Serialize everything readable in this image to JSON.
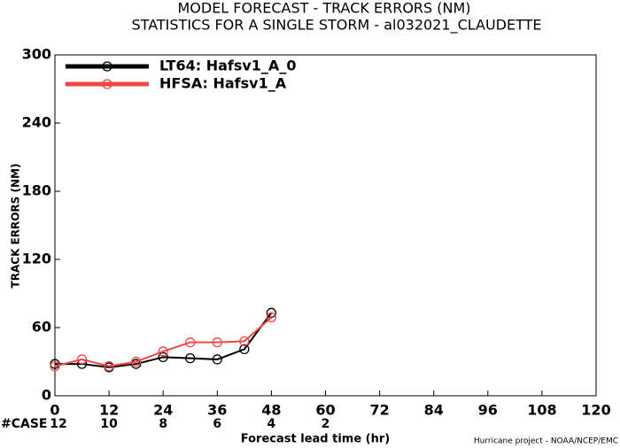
{
  "chart_data": {
    "type": "line",
    "title": "MODEL FORECAST - TRACK ERRORS (NM)",
    "subtitle": "STATISTICS FOR A SINGLE STORM - al032021_CLAUDETTE",
    "x_label": "Forecast lead time (hr)",
    "y_label": "TRACK ERRORS (NM)",
    "footer": "Hurricane project - NOAA/NCEP/EMC",
    "x": [
      0,
      6,
      12,
      18,
      24,
      30,
      36,
      42,
      48
    ],
    "series": [
      {
        "name": "LT64: Hafsv1_A_0",
        "color": "#000000",
        "values": [
          28,
          28,
          25,
          28,
          34,
          33,
          32,
          41,
          73
        ]
      },
      {
        "name": "HFSA: Hafsv1_A",
        "color": "#f04646",
        "values": [
          26,
          32,
          26,
          30,
          39,
          47,
          47,
          48,
          69
        ]
      }
    ],
    "case_counts": {
      "label": "#CASE",
      "color": "#00c0c8",
      "x": [
        0,
        12,
        24,
        36,
        48,
        60
      ],
      "values": [
        12,
        10,
        8,
        6,
        4,
        2
      ]
    },
    "xlim": [
      0,
      120
    ],
    "xticks": [
      0,
      12,
      24,
      36,
      48,
      60,
      72,
      84,
      96,
      108,
      120
    ],
    "ylim": [
      0,
      300
    ],
    "yticks": [
      0,
      60,
      120,
      180,
      240,
      300
    ],
    "legend": "upper left"
  }
}
